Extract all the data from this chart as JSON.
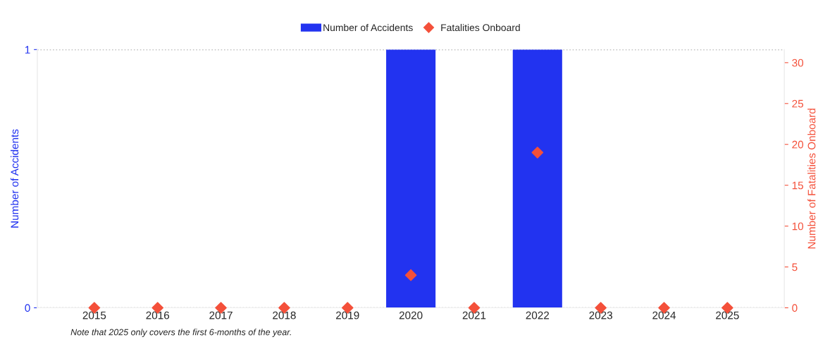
{
  "chart_data": {
    "type": "bar",
    "categories": [
      "2015",
      "2016",
      "2017",
      "2018",
      "2019",
      "2020",
      "2021",
      "2022",
      "2023",
      "2024",
      "2025"
    ],
    "series": [
      {
        "name": "Number of Accidents",
        "color": "#2233f0",
        "values": [
          0,
          0,
          0,
          0,
          0,
          1,
          0,
          1,
          0,
          0,
          0
        ]
      },
      {
        "name": "Fatalities Onboard",
        "type": "scatter",
        "axis": "y2",
        "marker": "diamond",
        "color": "#f4503a",
        "values": [
          0,
          0,
          0,
          0,
          0,
          4,
          0,
          19,
          0,
          0,
          0
        ]
      }
    ],
    "ylabel": "Number of Accidents",
    "y2label": "Number of Fatalities Onboard",
    "ylim": [
      0,
      1
    ],
    "yticks": [
      0,
      1
    ],
    "y2lim": [
      0,
      31.6
    ],
    "y2ticks": [
      0,
      5,
      10,
      15,
      20,
      25,
      30
    ],
    "grid": "y",
    "legend": "top",
    "annotations": [
      "Note that 2025 only covers the first 6-months of the year."
    ]
  }
}
